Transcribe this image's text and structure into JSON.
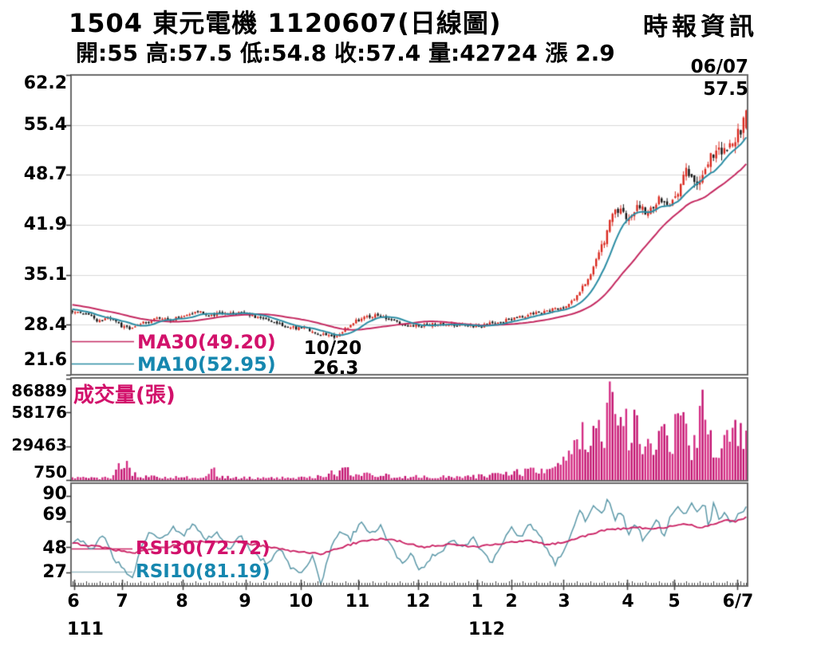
{
  "header": {
    "title": "1504  東元電機 1120607(日線圖)",
    "ohlc_line": "開:55 高:57.5 低:54.8 收:57.4 量:42724 漲 2.9",
    "source": "時報資訊"
  },
  "colors": {
    "label_magenta": "#d2116b",
    "label_teal": "#1687af",
    "ma30_line": "#c42960",
    "ma10_line": "#2b8da4",
    "rsi30_line": "#cb2566",
    "rsi10_line": "#5b98a8",
    "up_candle": "#da2a20",
    "down_candle": "#151515",
    "volume_bar": "#d42e84",
    "volume_bar_dark": "#c31270",
    "panel_border": "#6a6a6a",
    "gridline": "#d9d9d9"
  },
  "main_chart": {
    "yticks": [
      "62.2",
      "55.4",
      "48.7",
      "41.9",
      "35.1",
      "28.4",
      "21.6"
    ],
    "legend": {
      "ma30": "MA30(49.20)",
      "ma10": "MA10(52.95)"
    },
    "annotations": {
      "last_date": "06/07",
      "last_high": "57.5",
      "low_date": "10/20",
      "low_price": "26.3"
    }
  },
  "volume_chart": {
    "title": "成交量(張)",
    "yticks": [
      "86889",
      "58176",
      "29463",
      "750"
    ]
  },
  "rsi_chart": {
    "yticks": [
      "90",
      "69",
      "48",
      "27"
    ],
    "legend": {
      "rsi30": "RSI30(72.72)",
      "rsi10": "RSI10(81.19)"
    }
  },
  "xaxis": {
    "months": [
      "6",
      "7",
      "8",
      "9",
      "10",
      "11",
      "12",
      "1",
      "2",
      "3",
      "4",
      "5",
      "6/7"
    ],
    "years": [
      "111",
      "112"
    ]
  },
  "chart_data": [
    {
      "type": "candlestick",
      "panel": "price",
      "title": "1504 東元電機 1120607 日線圖",
      "ylim": [
        21.6,
        62.2
      ],
      "yticks": [
        62.2,
        55.4,
        48.7,
        41.9,
        35.1,
        28.4,
        21.6
      ],
      "num_days": 248,
      "today": {
        "date": "06/07",
        "open": 55,
        "high": 57.5,
        "low": 54.8,
        "close": 57.4,
        "change": 2.9
      },
      "marked_low": {
        "date": "10/20",
        "price": 26.3,
        "t": 0.388
      },
      "ma10_last": 52.95,
      "ma30_last": 49.2,
      "close_trend_keypoints": [
        [
          0,
          30.2
        ],
        [
          0.02,
          29.8
        ],
        [
          0.04,
          28.8
        ],
        [
          0.055,
          29.4
        ],
        [
          0.07,
          28.3
        ],
        [
          0.088,
          27.9
        ],
        [
          0.105,
          28.6
        ],
        [
          0.125,
          29.3
        ],
        [
          0.145,
          29.0
        ],
        [
          0.165,
          29.5
        ],
        [
          0.185,
          30.1
        ],
        [
          0.205,
          29.7
        ],
        [
          0.23,
          30.0
        ],
        [
          0.258,
          29.8
        ],
        [
          0.285,
          29.1
        ],
        [
          0.31,
          28.3
        ],
        [
          0.33,
          27.9
        ],
        [
          0.34,
          28.1
        ],
        [
          0.365,
          27.2
        ],
        [
          0.388,
          26.6
        ],
        [
          0.4,
          27.4
        ],
        [
          0.415,
          28.6
        ],
        [
          0.424,
          29.0
        ],
        [
          0.45,
          29.7
        ],
        [
          0.47,
          29.2
        ],
        [
          0.49,
          28.5
        ],
        [
          0.513,
          28.2
        ],
        [
          0.53,
          28.4
        ],
        [
          0.555,
          28.5
        ],
        [
          0.578,
          28.3
        ],
        [
          0.6,
          28.1
        ],
        [
          0.625,
          28.6
        ],
        [
          0.651,
          29.1
        ],
        [
          0.675,
          29.7
        ],
        [
          0.7,
          30.1
        ],
        [
          0.728,
          30.8
        ],
        [
          0.745,
          31.8
        ],
        [
          0.76,
          33.8
        ],
        [
          0.775,
          36.5
        ],
        [
          0.79,
          40.0
        ],
        [
          0.8,
          43.5
        ],
        [
          0.814,
          44.2
        ],
        [
          0.825,
          42.8
        ],
        [
          0.84,
          44.6
        ],
        [
          0.855,
          43.4
        ],
        [
          0.87,
          45.6
        ],
        [
          0.885,
          44.8
        ],
        [
          0.9,
          46.8
        ],
        [
          0.912,
          49.3
        ],
        [
          0.922,
          48.0
        ],
        [
          0.932,
          47.6
        ],
        [
          0.945,
          50.8
        ],
        [
          0.958,
          51.8
        ],
        [
          0.97,
          52.6
        ],
        [
          0.982,
          53.5
        ],
        [
          0.992,
          54.6
        ],
        [
          1,
          57.4
        ]
      ]
    },
    {
      "type": "bar",
      "panel": "volume",
      "ylabel": "成交量(張)",
      "yticks": [
        86889,
        58176,
        29463,
        750
      ],
      "volume_today": 42724,
      "volume_max": 86889,
      "volume_trend_keypoints": [
        [
          0,
          2200
        ],
        [
          0.06,
          3000
        ],
        [
          0.068,
          9000
        ],
        [
          0.074,
          21000
        ],
        [
          0.08,
          14000
        ],
        [
          0.09,
          6000
        ],
        [
          0.11,
          3500
        ],
        [
          0.15,
          2800
        ],
        [
          0.2,
          3200
        ],
        [
          0.207,
          12000
        ],
        [
          0.215,
          4000
        ],
        [
          0.26,
          2600
        ],
        [
          0.3,
          2400
        ],
        [
          0.34,
          3200
        ],
        [
          0.37,
          4500
        ],
        [
          0.388,
          6500
        ],
        [
          0.405,
          9500
        ],
        [
          0.42,
          6000
        ],
        [
          0.438,
          5200
        ],
        [
          0.47,
          4200
        ],
        [
          0.5,
          3400
        ],
        [
          0.526,
          3600
        ],
        [
          0.56,
          3200
        ],
        [
          0.6,
          3800
        ],
        [
          0.63,
          4800
        ],
        [
          0.649,
          6500
        ],
        [
          0.68,
          8500
        ],
        [
          0.705,
          11000
        ],
        [
          0.728,
          16000
        ],
        [
          0.742,
          30000
        ],
        [
          0.755,
          42000
        ],
        [
          0.768,
          36000
        ],
        [
          0.78,
          52000
        ],
        [
          0.79,
          44000
        ],
        [
          0.797,
          86889
        ],
        [
          0.806,
          50000
        ],
        [
          0.815,
          58000
        ],
        [
          0.825,
          38000
        ],
        [
          0.835,
          48000
        ],
        [
          0.845,
          30000
        ],
        [
          0.855,
          42000
        ],
        [
          0.865,
          26000
        ],
        [
          0.875,
          36000
        ],
        [
          0.885,
          30000
        ],
        [
          0.895,
          44000
        ],
        [
          0.905,
          58000
        ],
        [
          0.915,
          34000
        ],
        [
          0.925,
          28000
        ],
        [
          0.933,
          83000
        ],
        [
          0.942,
          42000
        ],
        [
          0.952,
          30000
        ],
        [
          0.962,
          25000
        ],
        [
          0.972,
          34000
        ],
        [
          0.982,
          56000
        ],
        [
          0.992,
          36000
        ],
        [
          1,
          42724
        ]
      ]
    },
    {
      "type": "line",
      "panel": "rsi",
      "yticks": [
        90,
        69,
        48,
        27
      ],
      "series": [
        {
          "name": "RSI30",
          "last": 72.72,
          "keypoints": [
            [
              0,
              51
            ],
            [
              0.04,
              48
            ],
            [
              0.088,
              43
            ],
            [
              0.13,
              47
            ],
            [
              0.18,
              52
            ],
            [
              0.23,
              53
            ],
            [
              0.27,
              50
            ],
            [
              0.31,
              46
            ],
            [
              0.35,
              43
            ],
            [
              0.369,
              42
            ],
            [
              0.4,
              48
            ],
            [
              0.43,
              53
            ],
            [
              0.46,
              55
            ],
            [
              0.49,
              52
            ],
            [
              0.52,
              48
            ],
            [
              0.56,
              50
            ],
            [
              0.6,
              48
            ],
            [
              0.64,
              51
            ],
            [
              0.675,
              53
            ],
            [
              0.705,
              50
            ],
            [
              0.73,
              52
            ],
            [
              0.76,
              57
            ],
            [
              0.79,
              62
            ],
            [
              0.815,
              63
            ],
            [
              0.84,
              64
            ],
            [
              0.865,
              63
            ],
            [
              0.89,
              65
            ],
            [
              0.91,
              67
            ],
            [
              0.93,
              64
            ],
            [
              0.95,
              67
            ],
            [
              0.97,
              70
            ],
            [
              0.985,
              69
            ],
            [
              1,
              72.72
            ]
          ]
        },
        {
          "name": "RSI10",
          "last": 81.19,
          "keypoints": [
            [
              0,
              50
            ],
            [
              0.015,
              55
            ],
            [
              0.03,
              44
            ],
            [
              0.045,
              58
            ],
            [
              0.06,
              40
            ],
            [
              0.075,
              30
            ],
            [
              0.088,
              21
            ],
            [
              0.1,
              44
            ],
            [
              0.115,
              60
            ],
            [
              0.13,
              53
            ],
            [
              0.148,
              64
            ],
            [
              0.163,
              57
            ],
            [
              0.18,
              66
            ],
            [
              0.197,
              54
            ],
            [
              0.215,
              61
            ],
            [
              0.232,
              47
            ],
            [
              0.25,
              56
            ],
            [
              0.27,
              42
            ],
            [
              0.29,
              34
            ],
            [
              0.308,
              46
            ],
            [
              0.325,
              31
            ],
            [
              0.342,
              26
            ],
            [
              0.356,
              40
            ],
            [
              0.369,
              17
            ],
            [
              0.383,
              46
            ],
            [
              0.398,
              63
            ],
            [
              0.412,
              54
            ],
            [
              0.428,
              69
            ],
            [
              0.443,
              59
            ],
            [
              0.458,
              66
            ],
            [
              0.472,
              49
            ],
            [
              0.488,
              34
            ],
            [
              0.502,
              43
            ],
            [
              0.516,
              29
            ],
            [
              0.532,
              39
            ],
            [
              0.55,
              46
            ],
            [
              0.565,
              53
            ],
            [
              0.58,
              47
            ],
            [
              0.594,
              56
            ],
            [
              0.608,
              44
            ],
            [
              0.622,
              34
            ],
            [
              0.638,
              52
            ],
            [
              0.652,
              63
            ],
            [
              0.665,
              55
            ],
            [
              0.678,
              66
            ],
            [
              0.692,
              58
            ],
            [
              0.705,
              46
            ],
            [
              0.716,
              34
            ],
            [
              0.728,
              44
            ],
            [
              0.74,
              58
            ],
            [
              0.752,
              78
            ],
            [
              0.763,
              69
            ],
            [
              0.774,
              84
            ],
            [
              0.785,
              74
            ],
            [
              0.795,
              88
            ],
            [
              0.805,
              70
            ],
            [
              0.815,
              78
            ],
            [
              0.825,
              58
            ],
            [
              0.836,
              67
            ],
            [
              0.847,
              54
            ],
            [
              0.858,
              63
            ],
            [
              0.868,
              71
            ],
            [
              0.877,
              56
            ],
            [
              0.888,
              73
            ],
            [
              0.898,
              81
            ],
            [
              0.908,
              74
            ],
            [
              0.918,
              83
            ],
            [
              0.928,
              77
            ],
            [
              0.938,
              87
            ],
            [
              0.945,
              62
            ],
            [
              0.952,
              88
            ],
            [
              0.96,
              70
            ],
            [
              0.968,
              76
            ],
            [
              0.977,
              67
            ],
            [
              0.986,
              73
            ],
            [
              1,
              81.19
            ]
          ]
        }
      ]
    }
  ],
  "x_month_ticks_t": [
    0.005,
    0.076,
    0.165,
    0.258,
    0.34,
    0.424,
    0.513,
    0.6,
    0.651,
    0.728,
    0.822,
    0.891,
    0.985
  ]
}
